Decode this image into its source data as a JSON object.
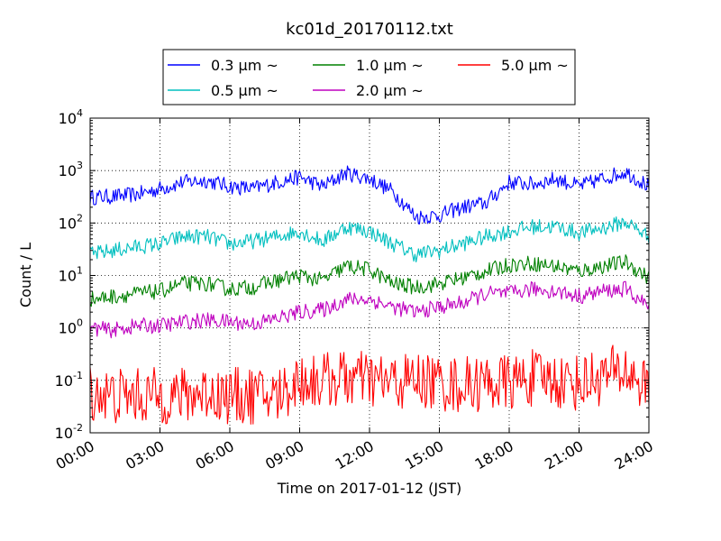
{
  "chart_data": {
    "type": "line",
    "title": "kc01d_20170112.txt",
    "xlabel": "Time on 2017-01-12 (JST)",
    "ylabel": "Count / L",
    "y_scale": "log",
    "ylim": [
      0.01,
      10000
    ],
    "xlim": [
      "00:00",
      "24:00"
    ],
    "grid": true,
    "legend_position": "top-center",
    "x_tick_labels": [
      "00:00",
      "03:00",
      "06:00",
      "09:00",
      "12:00",
      "15:00",
      "18:00",
      "21:00",
      "24:00"
    ],
    "y_tick_labels": [
      {
        "base": "10",
        "exp": "-2"
      },
      {
        "base": "10",
        "exp": "-1"
      },
      {
        "base": "10",
        "exp": "0"
      },
      {
        "base": "10",
        "exp": "1"
      },
      {
        "base": "10",
        "exp": "2"
      },
      {
        "base": "10",
        "exp": "3"
      },
      {
        "base": "10",
        "exp": "4"
      }
    ],
    "x_hours": [
      0,
      1,
      2,
      3,
      4,
      5,
      6,
      7,
      8,
      9,
      10,
      11,
      12,
      13,
      14,
      15,
      16,
      17,
      18,
      19,
      20,
      21,
      22,
      23,
      24
    ],
    "series": [
      {
        "name": "0.3 μm ~",
        "color": "#0000ff",
        "noise": 0.15,
        "values": [
          310,
          320,
          350,
          450,
          600,
          650,
          500,
          450,
          600,
          750,
          500,
          900,
          700,
          400,
          130,
          140,
          200,
          240,
          600,
          550,
          700,
          500,
          700,
          950,
          500
        ]
      },
      {
        "name": "0.5 μm ~",
        "color": "#00bfbf",
        "noise": 0.15,
        "values": [
          25,
          30,
          35,
          40,
          55,
          55,
          40,
          45,
          55,
          70,
          45,
          85,
          70,
          40,
          25,
          30,
          40,
          55,
          70,
          85,
          85,
          65,
          80,
          105,
          55
        ]
      },
      {
        "name": "1.0 μm ~",
        "color": "#008000",
        "noise": 0.15,
        "values": [
          3.5,
          4.0,
          4.5,
          5.0,
          7.0,
          7.0,
          5.5,
          6.0,
          8.0,
          10,
          8.0,
          15,
          13,
          7.0,
          6.0,
          7.0,
          9.0,
          12,
          16,
          17,
          15,
          12,
          15,
          18,
          9.0
        ]
      },
      {
        "name": "2.0 μm ~",
        "color": "#bf00bf",
        "noise": 0.15,
        "values": [
          1.0,
          0.9,
          1.1,
          1.1,
          1.3,
          1.4,
          1.3,
          1.2,
          1.5,
          2.0,
          2.2,
          3.5,
          3.5,
          2.5,
          2.0,
          2.5,
          3.0,
          4.5,
          4.5,
          5.5,
          5.0,
          4.0,
          5.0,
          5.5,
          2.5
        ]
      },
      {
        "name": "5.0 μm ~",
        "color": "#ff0000",
        "noise": 0.55,
        "values": [
          0.06,
          0.05,
          0.05,
          0.05,
          0.05,
          0.06,
          0.05,
          0.05,
          0.05,
          0.1,
          0.1,
          0.11,
          0.1,
          0.09,
          0.1,
          0.09,
          0.08,
          0.09,
          0.09,
          0.11,
          0.1,
          0.09,
          0.12,
          0.15,
          0.07
        ]
      }
    ]
  }
}
